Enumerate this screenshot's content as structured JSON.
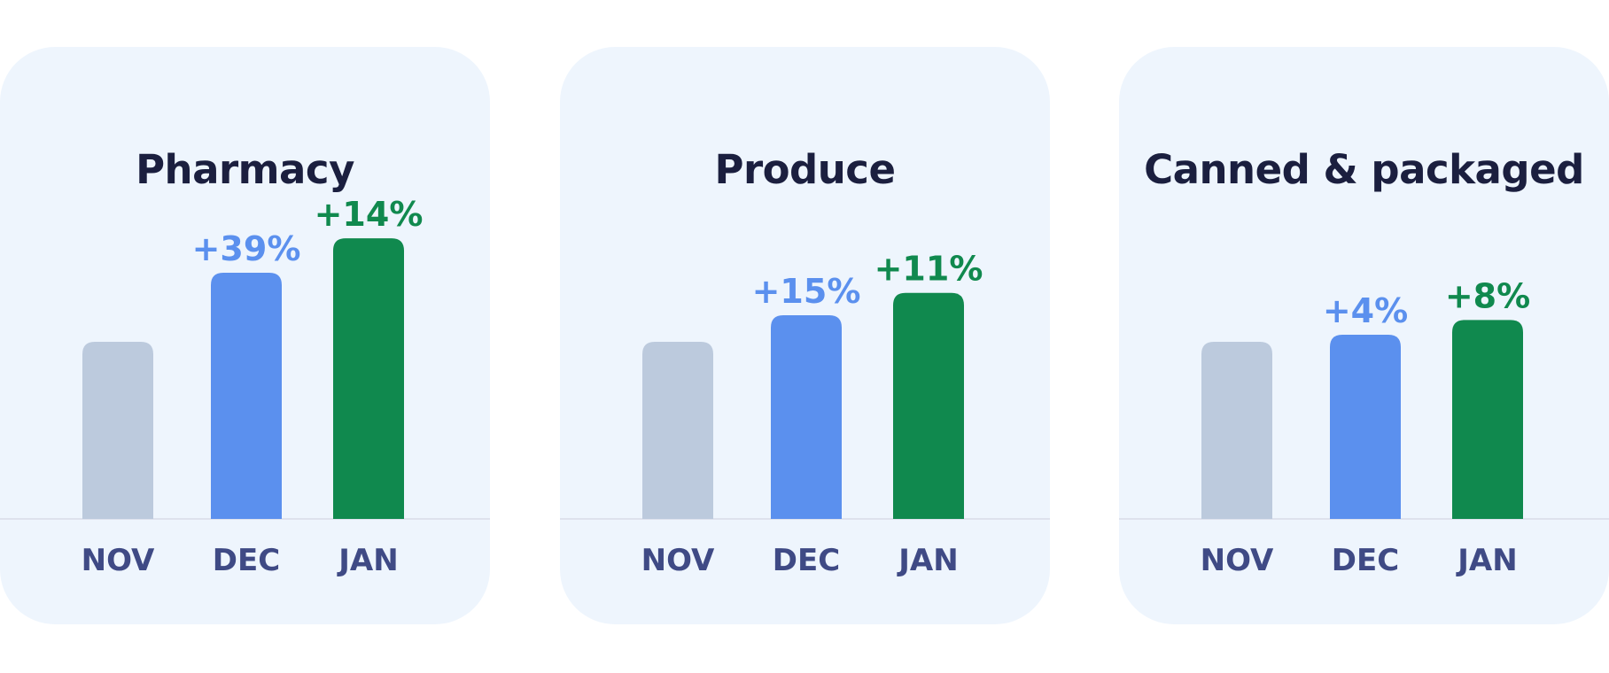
{
  "colors": {
    "background": "#ffffff",
    "panel": "#eef5fd",
    "title": "#1b1f3f",
    "axis_label": "#3f4a85",
    "baseline": "#d8dce8",
    "nov_bar": "#bccadd",
    "dec_bar": "#5b90ee",
    "jan_bar": "#10894e"
  },
  "chart_data": [
    {
      "type": "bar",
      "title": "Pharmacy",
      "categories": [
        "NOV",
        "DEC",
        "JAN"
      ],
      "values": [
        100,
        139,
        158.46
      ],
      "labels": [
        "",
        "+39%",
        "+14%"
      ],
      "ylim": [
        0,
        180
      ]
    },
    {
      "type": "bar",
      "title": "Produce",
      "categories": [
        "NOV",
        "DEC",
        "JAN"
      ],
      "values": [
        100,
        115,
        127.65
      ],
      "labels": [
        "",
        "+15%",
        "+11%"
      ],
      "ylim": [
        0,
        180
      ]
    },
    {
      "type": "bar",
      "title": "Canned & packaged",
      "categories": [
        "NOV",
        "DEC",
        "JAN"
      ],
      "values": [
        100,
        104,
        112.32
      ],
      "labels": [
        "",
        "+4%",
        "+8%"
      ],
      "ylim": [
        0,
        180
      ]
    }
  ]
}
